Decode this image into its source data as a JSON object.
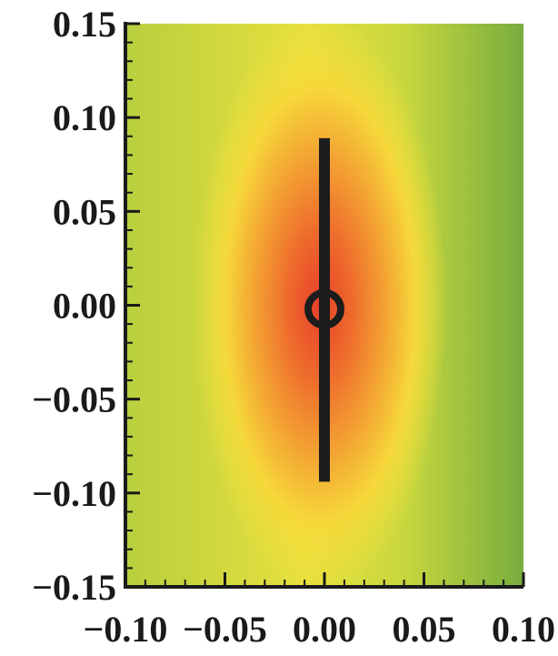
{
  "chart_data": {
    "type": "heatmap",
    "title": "",
    "xlabel": "",
    "ylabel": "",
    "xlim": [
      -0.1,
      0.1
    ],
    "ylim": [
      -0.15,
      0.15
    ],
    "x_ticks": [
      -0.1,
      -0.05,
      0.0,
      0.05,
      0.1
    ],
    "x_tick_labels": [
      "−0.10",
      "−0.05",
      "0.00",
      "0.05",
      "0.10"
    ],
    "y_ticks": [
      0.15,
      0.1,
      0.05,
      0.0,
      -0.05,
      -0.1,
      -0.15
    ],
    "y_tick_labels": [
      "0.15",
      "0.10",
      "0.05",
      "0.00",
      "−0.05",
      "−0.10",
      "−0.15"
    ],
    "minor_ticks_per_interval": 4,
    "grid": false,
    "colormap": [
      "#e8402a",
      "#f07a2c",
      "#f5b032",
      "#f5e23c",
      "#c9d63c",
      "#7aae3e"
    ],
    "field_peak": {
      "x": 0.0,
      "y": 0.0,
      "description_color": "red"
    },
    "overlay": {
      "rod": {
        "x": 0.0,
        "y_start": -0.094,
        "y_end": 0.089,
        "color": "#1c1c1c"
      },
      "ring": {
        "x": 0.0,
        "y": -0.002,
        "color": "#1c1c1c"
      }
    }
  }
}
